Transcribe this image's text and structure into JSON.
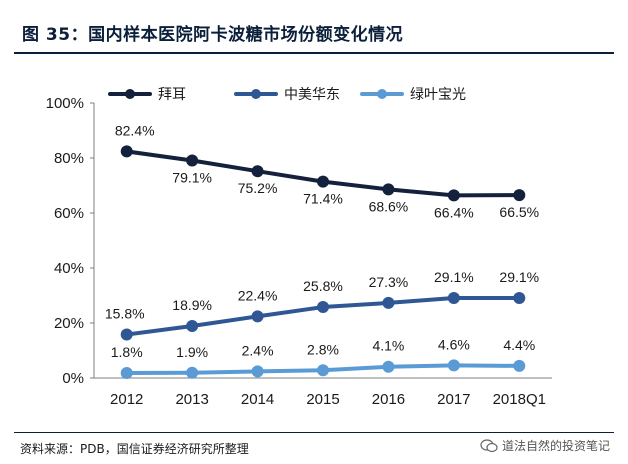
{
  "figure": {
    "title": "图 35：国内样本医院阿卡波糖市场份额变化情况",
    "source": "资料来源：PDB，国信证券经济研究所整理",
    "watermark": "道法自然的投资笔记"
  },
  "chart_data": {
    "type": "line",
    "title": "",
    "xlabel": "",
    "ylabel": "",
    "categories": [
      "2012",
      "2013",
      "2014",
      "2015",
      "2016",
      "2017",
      "2018Q1"
    ],
    "ylim": [
      0,
      100
    ],
    "yticks": [
      "0%",
      "20%",
      "40%",
      "60%",
      "80%",
      "100%"
    ],
    "grid": false,
    "legend_position": "top",
    "series": [
      {
        "name": "拜耳",
        "color": "#14213d",
        "values": [
          82.4,
          79.1,
          75.2,
          71.4,
          68.6,
          66.4,
          66.5
        ],
        "labels": [
          "82.4%",
          "79.1%",
          "75.2%",
          "71.4%",
          "68.6%",
          "66.4%",
          "66.5%"
        ]
      },
      {
        "name": "中美华东",
        "color": "#2e5793",
        "values": [
          15.8,
          18.9,
          22.4,
          25.8,
          27.3,
          29.1,
          29.1
        ],
        "labels": [
          "15.8%",
          "18.9%",
          "22.4%",
          "25.8%",
          "27.3%",
          "29.1%",
          "29.1%"
        ]
      },
      {
        "name": "绿叶宝光",
        "color": "#5b9bd5",
        "values": [
          1.8,
          1.9,
          2.4,
          2.8,
          4.1,
          4.6,
          4.4
        ],
        "labels": [
          "1.8%",
          "1.9%",
          "2.4%",
          "2.8%",
          "4.1%",
          "4.6%",
          "4.4%"
        ]
      }
    ]
  }
}
